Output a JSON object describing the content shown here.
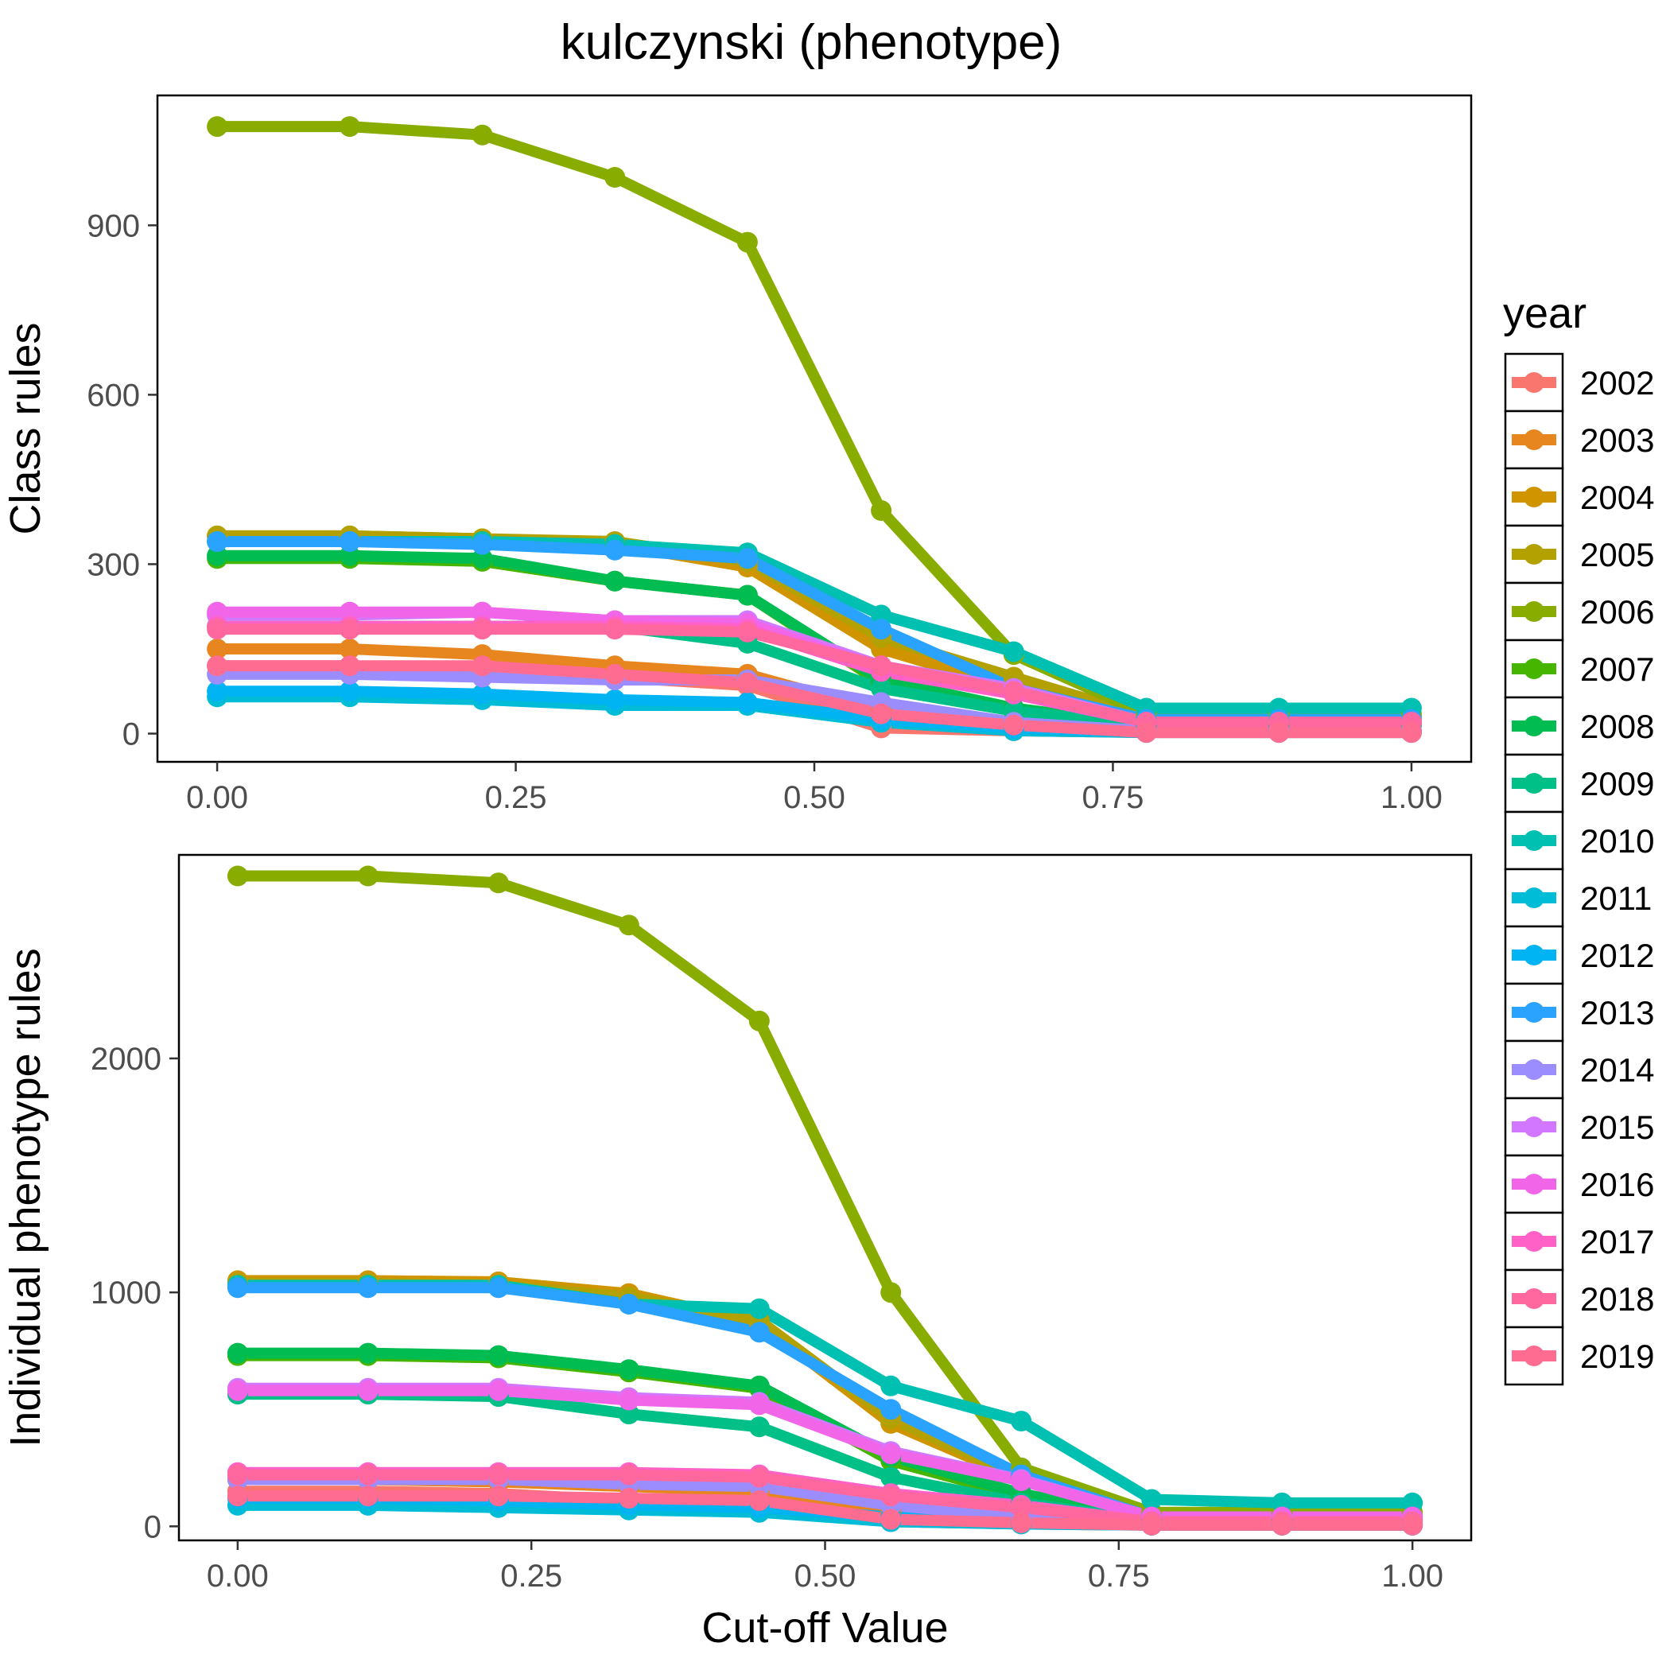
{
  "figure": {
    "title": "kulczynski (phenotype)",
    "legend_title": "year",
    "legend_position": "right"
  },
  "chart_data": [
    {
      "type": "line",
      "title": "kulczynski (phenotype)",
      "xlabel": "",
      "ylabel": "Class rules",
      "xlim": [
        -0.05,
        1.05
      ],
      "ylim": [
        -50,
        1130
      ],
      "x_ticks": [
        0.0,
        0.25,
        0.5,
        0.75,
        1.0
      ],
      "x_tick_labels": [
        "0.00",
        "0.25",
        "0.50",
        "0.75",
        "1.00"
      ],
      "y_ticks": [
        0,
        300,
        600,
        900
      ],
      "y_tick_labels": [
        "0",
        "300",
        "600",
        "900"
      ],
      "grid": false,
      "x": [
        0.0,
        0.111,
        0.222,
        0.333,
        0.444,
        0.556,
        0.667,
        0.778,
        0.889,
        1.0
      ],
      "series": [
        {
          "name": "2002",
          "color": "#F8766D",
          "values": [
            120,
            120,
            115,
            100,
            85,
            10,
            5,
            2,
            2,
            2
          ]
        },
        {
          "name": "2003",
          "color": "#E7851E",
          "values": [
            150,
            150,
            140,
            120,
            105,
            40,
            15,
            5,
            5,
            5
          ]
        },
        {
          "name": "2004",
          "color": "#D09400",
          "values": [
            350,
            350,
            345,
            335,
            295,
            150,
            80,
            30,
            30,
            30
          ]
        },
        {
          "name": "2005",
          "color": "#B2A100",
          "values": [
            350,
            350,
            345,
            340,
            305,
            170,
            100,
            30,
            30,
            30
          ]
        },
        {
          "name": "2006",
          "color": "#89AC00",
          "values": [
            1075,
            1075,
            1060,
            985,
            870,
            395,
            140,
            35,
            35,
            35
          ]
        },
        {
          "name": "2007",
          "color": "#45B500",
          "values": [
            310,
            310,
            305,
            270,
            245,
            90,
            40,
            15,
            15,
            15
          ]
        },
        {
          "name": "2008",
          "color": "#00BC51",
          "values": [
            315,
            315,
            310,
            270,
            245,
            95,
            45,
            15,
            15,
            15
          ]
        },
        {
          "name": "2009",
          "color": "#00C087",
          "values": [
            190,
            190,
            190,
            190,
            160,
            80,
            40,
            15,
            15,
            15
          ]
        },
        {
          "name": "2010",
          "color": "#00C0B2",
          "values": [
            340,
            340,
            340,
            335,
            320,
            210,
            145,
            45,
            45,
            45
          ]
        },
        {
          "name": "2011",
          "color": "#00BCD6",
          "values": [
            65,
            65,
            60,
            50,
            50,
            20,
            5,
            2,
            2,
            2
          ]
        },
        {
          "name": "2012",
          "color": "#00B3F2",
          "values": [
            75,
            75,
            70,
            60,
            55,
            25,
            10,
            3,
            3,
            3
          ]
        },
        {
          "name": "2013",
          "color": "#29A3FF",
          "values": [
            340,
            340,
            335,
            325,
            310,
            185,
            80,
            25,
            25,
            25
          ]
        },
        {
          "name": "2014",
          "color": "#9C8DFF",
          "values": [
            105,
            105,
            100,
            95,
            95,
            55,
            20,
            5,
            5,
            5
          ]
        },
        {
          "name": "2015",
          "color": "#D277FF",
          "values": [
            210,
            210,
            215,
            200,
            200,
            120,
            80,
            20,
            20,
            20
          ]
        },
        {
          "name": "2016",
          "color": "#F166E8",
          "values": [
            215,
            215,
            215,
            200,
            195,
            115,
            75,
            20,
            20,
            20
          ]
        },
        {
          "name": "2017",
          "color": "#FF61C7",
          "values": [
            190,
            190,
            190,
            190,
            185,
            110,
            70,
            20,
            20,
            20
          ]
        },
        {
          "name": "2018",
          "color": "#FF689E",
          "values": [
            185,
            185,
            185,
            185,
            180,
            120,
            75,
            20,
            20,
            20
          ]
        },
        {
          "name": "2019",
          "color": "#FF6C91",
          "values": [
            120,
            120,
            120,
            105,
            90,
            35,
            15,
            2,
            2,
            2
          ]
        }
      ]
    },
    {
      "type": "line",
      "title": "",
      "xlabel": "Cut-off Value",
      "ylabel": "Individual phenotype rules",
      "xlim": [
        -0.05,
        1.05
      ],
      "ylim": [
        -60,
        2870
      ],
      "x_ticks": [
        0.0,
        0.25,
        0.5,
        0.75,
        1.0
      ],
      "x_tick_labels": [
        "0.00",
        "0.25",
        "0.50",
        "0.75",
        "1.00"
      ],
      "y_ticks": [
        0,
        1000,
        2000
      ],
      "y_tick_labels": [
        "0",
        "1000",
        "2000"
      ],
      "grid": false,
      "x": [
        0.0,
        0.111,
        0.222,
        0.333,
        0.444,
        0.556,
        0.667,
        0.778,
        0.889,
        1.0
      ],
      "series": [
        {
          "name": "2002",
          "color": "#F8766D",
          "values": [
            150,
            150,
            140,
            110,
            90,
            20,
            10,
            5,
            5,
            5
          ]
        },
        {
          "name": "2003",
          "color": "#E7851E",
          "values": [
            200,
            200,
            190,
            170,
            150,
            60,
            30,
            10,
            10,
            10
          ]
        },
        {
          "name": "2004",
          "color": "#D09400",
          "values": [
            1050,
            1050,
            1045,
            995,
            870,
            440,
            200,
            50,
            50,
            50
          ]
        },
        {
          "name": "2005",
          "color": "#B2A100",
          "values": [
            1040,
            1040,
            1030,
            980,
            880,
            460,
            210,
            50,
            50,
            50
          ]
        },
        {
          "name": "2006",
          "color": "#89AC00",
          "values": [
            2780,
            2780,
            2750,
            2570,
            2160,
            1000,
            250,
            60,
            60,
            60
          ]
        },
        {
          "name": "2007",
          "color": "#45B500",
          "values": [
            730,
            730,
            720,
            660,
            590,
            280,
            130,
            30,
            30,
            30
          ]
        },
        {
          "name": "2008",
          "color": "#00BC51",
          "values": [
            740,
            740,
            730,
            670,
            600,
            300,
            140,
            30,
            30,
            30
          ]
        },
        {
          "name": "2009",
          "color": "#00C087",
          "values": [
            565,
            565,
            555,
            480,
            425,
            210,
            100,
            25,
            25,
            25
          ]
        },
        {
          "name": "2010",
          "color": "#00C0B2",
          "values": [
            1030,
            1030,
            1030,
            950,
            930,
            600,
            450,
            115,
            100,
            100
          ]
        },
        {
          "name": "2011",
          "color": "#00BCD6",
          "values": [
            90,
            90,
            80,
            70,
            60,
            20,
            10,
            5,
            5,
            5
          ]
        },
        {
          "name": "2012",
          "color": "#00B3F2",
          "values": [
            120,
            120,
            110,
            90,
            80,
            40,
            20,
            5,
            5,
            5
          ]
        },
        {
          "name": "2013",
          "color": "#29A3FF",
          "values": [
            1020,
            1020,
            1020,
            950,
            830,
            500,
            220,
            40,
            40,
            40
          ]
        },
        {
          "name": "2014",
          "color": "#9C8DFF",
          "values": [
            200,
            200,
            200,
            180,
            170,
            90,
            40,
            10,
            10,
            10
          ]
        },
        {
          "name": "2015",
          "color": "#D277FF",
          "values": [
            590,
            590,
            590,
            550,
            530,
            320,
            200,
            40,
            40,
            40
          ]
        },
        {
          "name": "2016",
          "color": "#F166E8",
          "values": [
            580,
            580,
            580,
            540,
            520,
            310,
            195,
            40,
            40,
            40
          ]
        },
        {
          "name": "2017",
          "color": "#FF61C7",
          "values": [
            230,
            230,
            230,
            230,
            220,
            140,
            90,
            20,
            20,
            20
          ]
        },
        {
          "name": "2018",
          "color": "#FF689E",
          "values": [
            220,
            220,
            220,
            220,
            210,
            130,
            80,
            20,
            20,
            20
          ]
        },
        {
          "name": "2019",
          "color": "#FF6C91",
          "values": [
            130,
            130,
            130,
            120,
            110,
            30,
            15,
            5,
            5,
            5
          ]
        }
      ]
    }
  ]
}
